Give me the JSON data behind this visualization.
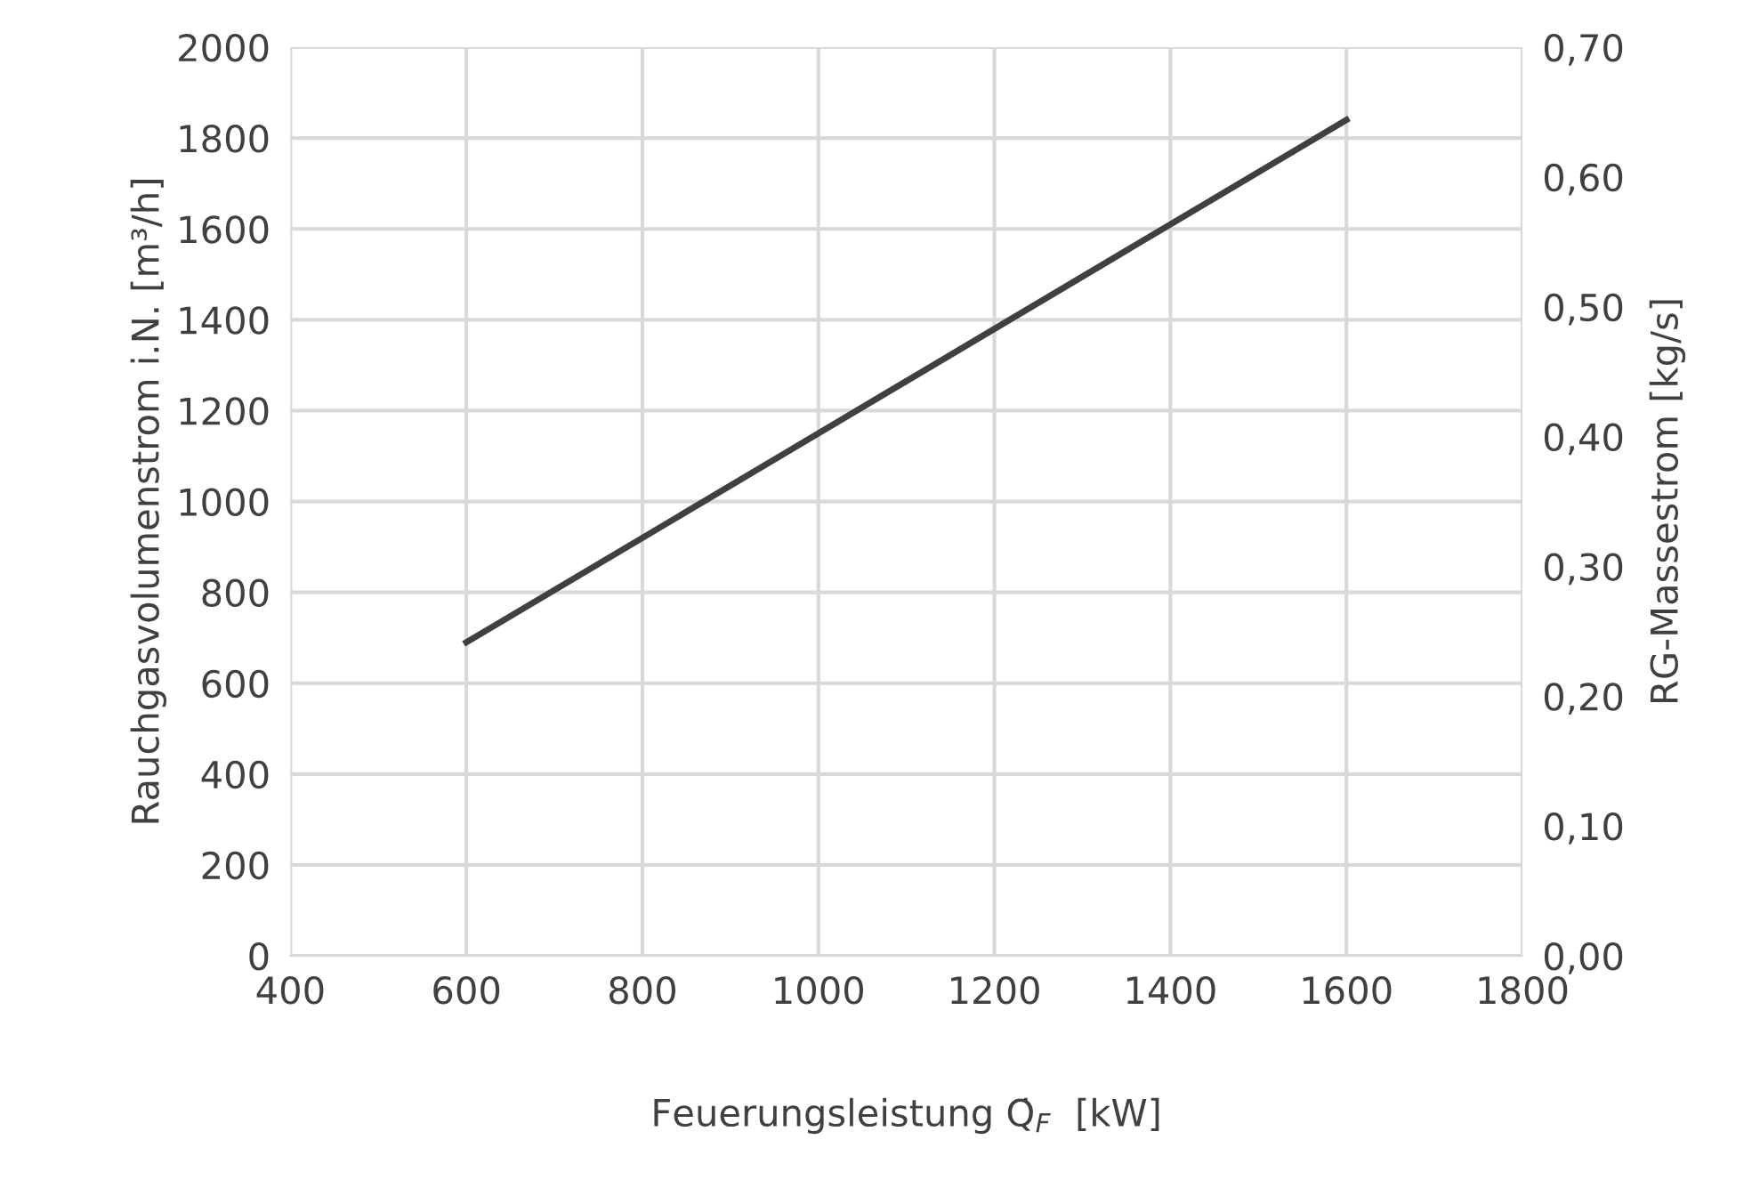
{
  "chart_data": {
    "type": "line",
    "xlabel": "Feuerungsleistung Q̇$_{F}$  [kW]",
    "ylabel": "Rauchgasvolumenstrom i.N. [m³/h]",
    "y2label": "RG-Massestrom [kg/s]",
    "x": [
      600,
      1600
    ],
    "series": [
      {
        "color": "#404040",
        "values": [
          690,
          1840
        ]
      }
    ],
    "xlim": [
      400,
      1800
    ],
    "xticks": [
      400,
      600,
      800,
      1000,
      1200,
      1400,
      1600,
      1800
    ],
    "ylim": [
      0,
      2000
    ],
    "yticks": [
      0,
      200,
      400,
      600,
      800,
      1000,
      1200,
      1400,
      1600,
      1800,
      2000
    ],
    "y2lim": [
      0,
      0.7
    ],
    "y2ticks": [
      {
        "value": 0,
        "label": "0,00"
      },
      {
        "value": 0.1,
        "label": "0,10"
      },
      {
        "value": 0.2,
        "label": "0,20"
      },
      {
        "value": 0.3,
        "label": "0,30"
      },
      {
        "value": 0.4,
        "label": "0,40"
      },
      {
        "value": 0.5,
        "label": "0,50"
      },
      {
        "value": 0.6,
        "label": "0,60"
      },
      {
        "value": 0.7,
        "label": "0,70"
      }
    ],
    "grid": true,
    "line_style": "solid",
    "marker": "none"
  }
}
